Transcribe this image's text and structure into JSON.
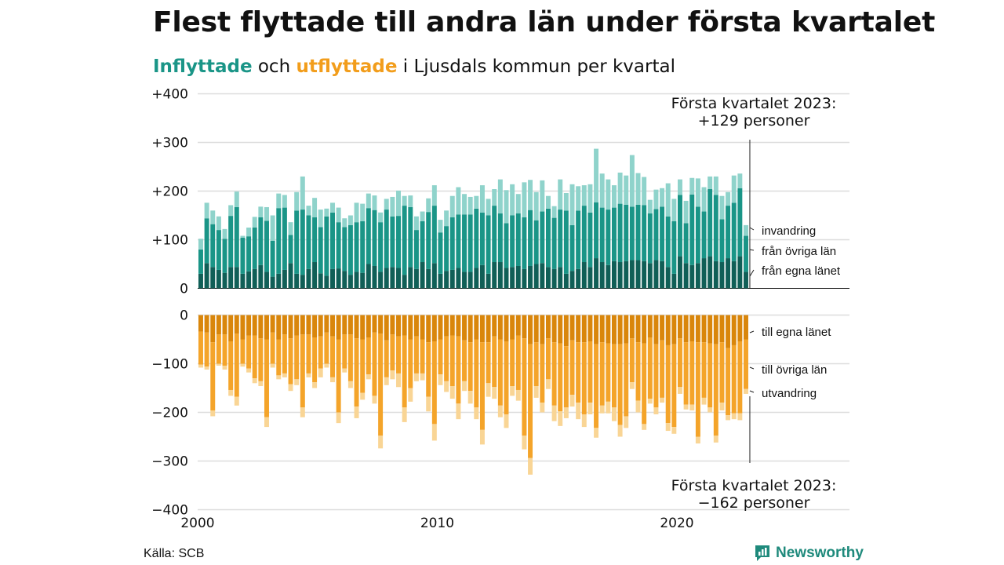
{
  "title": "Flest flyttade till andra län under första kvartalet",
  "subtitle": {
    "in_word": "Inflyttade",
    "and_word": " och ",
    "out_word": "utflyttade",
    "rest": " i Ljusdals kommun per kvartal"
  },
  "source": "Källa: SCB",
  "logo_text": "Newsworthy",
  "colors": {
    "in_local": "#105f57",
    "in_other": "#1a9587",
    "in_immig": "#8fd3cb",
    "out_local": "#d9860b",
    "out_other": "#f4a42a",
    "out_emig": "#f9d595",
    "grid": "#dddddd"
  },
  "chart_data": {
    "type": "bar",
    "stacked": true,
    "x_start": 2000,
    "x_step": 0.25,
    "x_ticks": [
      "2000",
      "2010",
      "2020"
    ],
    "top_panel": {
      "ylim": [
        0,
        400
      ],
      "y_ticks": [
        "+400",
        "+300",
        "+200",
        "+100",
        "0"
      ],
      "series": [
        {
          "name": "från egna länet",
          "color_key": "in_local",
          "values": [
            30,
            52,
            44,
            38,
            32,
            44,
            44,
            30,
            35,
            40,
            48,
            34,
            24,
            30,
            38,
            52,
            30,
            28,
            40,
            54,
            31,
            26,
            40,
            41,
            36,
            28,
            34,
            32,
            50,
            46,
            34,
            42,
            44,
            42,
            28,
            44,
            40,
            54,
            40,
            52,
            30,
            36,
            38,
            42,
            34,
            34,
            42,
            48,
            30,
            54,
            54,
            42,
            44,
            46,
            40,
            46,
            50,
            52,
            44,
            40,
            44,
            30,
            36,
            40,
            54,
            44,
            62,
            54,
            48,
            56,
            54,
            56,
            58,
            58,
            56,
            52,
            58,
            56,
            44,
            30,
            66,
            52,
            48,
            52,
            62,
            66,
            56,
            54,
            62,
            56,
            66,
            34
          ]
        },
        {
          "name": "från övriga län",
          "color_key": "in_other",
          "values": [
            50,
            92,
            88,
            82,
            70,
            105,
            123,
            74,
            72,
            85,
            98,
            105,
            74,
            135,
            128,
            58,
            130,
            134,
            110,
            92,
            95,
            122,
            116,
            95,
            90,
            102,
            102,
            106,
            115,
            115,
            102,
            120,
            104,
            107,
            142,
            123,
            80,
            84,
            117,
            118,
            85,
            92,
            108,
            110,
            118,
            118,
            122,
            108,
            120,
            116,
            100,
            92,
            106,
            108,
            106,
            115,
            90,
            106,
            120,
            105,
            118,
            130,
            94,
            120,
            116,
            112,
            115,
            112,
            114,
            110,
            120,
            116,
            110,
            114,
            115,
            102,
            105,
            112,
            104,
            108,
            126,
            82,
            145,
            116,
            96,
            138,
            136,
            88,
            108,
            120,
            140,
            74
          ]
        },
        {
          "name": "invandring",
          "color_key": "in_immig",
          "values": [
            22,
            32,
            28,
            28,
            20,
            22,
            32,
            4,
            18,
            22,
            22,
            28,
            52,
            30,
            26,
            26,
            38,
            68,
            20,
            40,
            36,
            16,
            20,
            30,
            18,
            20,
            40,
            36,
            30,
            30,
            20,
            22,
            40,
            52,
            20,
            24,
            28,
            20,
            28,
            42,
            26,
            32,
            44,
            56,
            42,
            36,
            26,
            56,
            34,
            34,
            70,
            68,
            64,
            40,
            72,
            62,
            58,
            64,
            26,
            24,
            62,
            36,
            84,
            50,
            42,
            58,
            110,
            70,
            62,
            46,
            64,
            60,
            106,
            65,
            58,
            28,
            40,
            38,
            68,
            46,
            32,
            46,
            34,
            58,
            50,
            26,
            38,
            48,
            28,
            56,
            30,
            22
          ]
        }
      ]
    },
    "bottom_panel": {
      "ylim": [
        -400,
        0
      ],
      "y_ticks": [
        "0",
        "−100",
        "−200",
        "−300",
        "−400"
      ],
      "series": [
        {
          "name": "till egna länet",
          "color_key": "out_local",
          "values": [
            -34,
            -36,
            -56,
            -40,
            -40,
            -54,
            -38,
            -50,
            -42,
            -42,
            -48,
            -50,
            -36,
            -50,
            -40,
            -48,
            -42,
            -40,
            -40,
            -46,
            -44,
            -36,
            -44,
            -50,
            -40,
            -40,
            -48,
            -50,
            -46,
            -36,
            -38,
            -52,
            -40,
            -44,
            -42,
            -50,
            -44,
            -50,
            -56,
            -54,
            -50,
            -44,
            -42,
            -44,
            -52,
            -56,
            -50,
            -56,
            -56,
            -44,
            -50,
            -54,
            -50,
            -42,
            -48,
            -60,
            -56,
            -60,
            -48,
            -56,
            -58,
            -64,
            -52,
            -56,
            -56,
            -54,
            -60,
            -56,
            -58,
            -60,
            -60,
            -58,
            -48,
            -56,
            -58,
            -46,
            -60,
            -52,
            -62,
            -60,
            -48,
            -56,
            -54,
            -56,
            -56,
            -58,
            -60,
            -56,
            -68,
            -62,
            -54,
            -50
          ]
        },
        {
          "name": "till övriga län",
          "color_key": "out_other",
          "values": [
            -68,
            -70,
            -140,
            -60,
            -64,
            -100,
            -130,
            -50,
            -68,
            -88,
            -88,
            -160,
            -64,
            -74,
            -80,
            -94,
            -90,
            -150,
            -80,
            -92,
            -66,
            -64,
            -84,
            -150,
            -70,
            -96,
            -140,
            -110,
            -76,
            -130,
            -210,
            -76,
            -74,
            -76,
            -148,
            -100,
            -76,
            -70,
            -112,
            -170,
            -72,
            -92,
            -104,
            -138,
            -84,
            -100,
            -140,
            -180,
            -84,
            -104,
            -136,
            -150,
            -96,
            -112,
            -200,
            -234,
            -90,
            -120,
            -84,
            -130,
            -140,
            -126,
            -112,
            -124,
            -148,
            -126,
            -172,
            -130,
            -120,
            -130,
            -166,
            -150,
            -90,
            -120,
            -166,
            -126,
            -130,
            -118,
            -160,
            -170,
            -100,
            -128,
            -130,
            -194,
            -114,
            -132,
            -188,
            -124,
            -138,
            -140,
            -148,
            -102
          ]
        },
        {
          "name": "utvandring",
          "color_key": "out_emig",
          "values": [
            -6,
            -6,
            -12,
            -4,
            -8,
            -12,
            -18,
            -6,
            -8,
            -10,
            -10,
            -20,
            -8,
            -8,
            -8,
            -14,
            -12,
            -20,
            -8,
            -12,
            -18,
            -8,
            -10,
            -22,
            -8,
            -14,
            -24,
            -14,
            -10,
            -16,
            -26,
            -16,
            -18,
            -28,
            -30,
            -28,
            -16,
            -14,
            -30,
            -34,
            -22,
            -22,
            -26,
            -32,
            -20,
            -26,
            -24,
            -30,
            -28,
            -24,
            -24,
            -28,
            -20,
            -22,
            -28,
            -34,
            -24,
            -20,
            -20,
            -32,
            -30,
            -22,
            -24,
            -34,
            -26,
            -24,
            -20,
            -16,
            -24,
            -28,
            -24,
            -24,
            -14,
            -24,
            -12,
            -10,
            -14,
            -10,
            -16,
            -14,
            -14,
            -10,
            -12,
            -14,
            -14,
            -10,
            -14,
            -16,
            -10,
            -12,
            -14,
            -10
          ]
        }
      ]
    },
    "annotations": {
      "top": [
        "Första kvartalet 2023:",
        "+129 personer"
      ],
      "bottom": [
        "Första kvartalet 2023:",
        "−162 personer"
      ]
    }
  }
}
